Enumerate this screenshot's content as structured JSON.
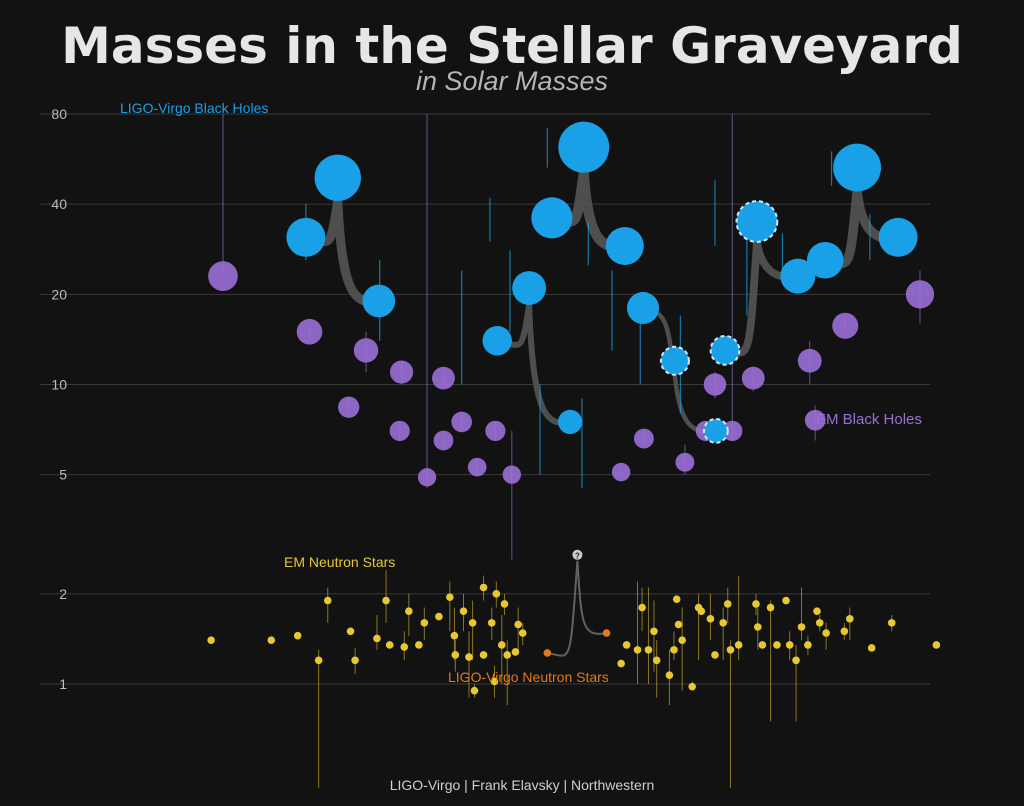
{
  "chart_data": {
    "type": "scatter",
    "title": "Masses in the Stellar Graveyard",
    "subtitle": "in Solar Masses",
    "credit": "LIGO-Virgo | Frank Elavsky | Northwestern",
    "y_scale": "log",
    "ylim": [
      0.45,
      85
    ],
    "y_ticks": [
      1,
      2,
      5,
      10,
      20,
      40,
      80
    ],
    "colors": {
      "ligo_bh": "#1aa0e6",
      "em_bh": "#9b6fd6",
      "em_ns": "#e8c832",
      "ligo_ns": "#e07a1c",
      "merger_arc": "#555555",
      "grid": "#3a3a3a"
    },
    "labels": {
      "ligo_bh": "LIGO-Virgo Black Holes",
      "em_bh": "EM Black Holes",
      "em_ns": "EM Neutron Stars",
      "ligo_ns": "LIGO-Virgo Neutron Stars"
    },
    "ligo_bh_mergers": [
      {
        "x": 0.19,
        "m1": 31,
        "m2": 19,
        "final": 49
      },
      {
        "x": 0.4,
        "m1": 14,
        "m2": 7.5,
        "final": 21
      },
      {
        "x": 0.46,
        "m1": 36,
        "m2": 29,
        "final": 62
      },
      {
        "x": 0.56,
        "m1": 18,
        "m2": 7,
        "final": 12
      },
      {
        "x": 0.65,
        "m1": 13,
        "m2": 23,
        "final": 35
      },
      {
        "x": 0.76,
        "m1": 26,
        "m2": 31,
        "final": 53
      }
    ],
    "ligo_bh_errors": [
      {
        "x": 0.215,
        "m": 31,
        "lo": 26,
        "hi": 40
      },
      {
        "x": 0.296,
        "m": 19,
        "lo": 14,
        "hi": 26
      },
      {
        "x": 0.253,
        "m": 49,
        "lo": 43,
        "hi": 56
      },
      {
        "x": 0.386,
        "m": 14,
        "lo": 10,
        "hi": 24
      },
      {
        "x": 0.472,
        "m": 7.5,
        "lo": 5,
        "hi": 10
      },
      {
        "x": 0.439,
        "m": 21,
        "lo": 15,
        "hi": 28
      },
      {
        "x": 0.417,
        "m": 36,
        "lo": 30,
        "hi": 42
      },
      {
        "x": 0.525,
        "m": 29,
        "lo": 25,
        "hi": 35
      },
      {
        "x": 0.48,
        "m": 62,
        "lo": 53,
        "hi": 72
      },
      {
        "x": 0.551,
        "m": 18,
        "lo": 13,
        "hi": 24
      },
      {
        "x": 0.518,
        "m": 7,
        "lo": 4.5,
        "hi": 9
      },
      {
        "x": 0.582,
        "m": 12,
        "lo": 10,
        "hi": 18
      },
      {
        "x": 0.626,
        "m": 13,
        "lo": 8,
        "hi": 17
      },
      {
        "x": 0.699,
        "m": 23,
        "lo": 17,
        "hi": 40
      },
      {
        "x": 0.664,
        "m": 35,
        "lo": 29,
        "hi": 48
      },
      {
        "x": 0.738,
        "m": 26,
        "lo": 22,
        "hi": 32
      },
      {
        "x": 0.834,
        "m": 31,
        "lo": 26,
        "hi": 37
      },
      {
        "x": 0.792,
        "m": 53,
        "lo": 46,
        "hi": 60
      }
    ],
    "ligo_bh_dashed": [
      0.664,
      0.699,
      0.626
    ],
    "em_bh": [
      {
        "x": 0.124,
        "m": 23,
        "lo": 23,
        "hi": 80
      },
      {
        "x": 0.219,
        "m": 15,
        "lo": 14,
        "hi": 16
      },
      {
        "x": 0.262,
        "m": 8.4,
        "lo": 8,
        "hi": 9
      },
      {
        "x": 0.281,
        "m": 13,
        "lo": 11,
        "hi": 15
      },
      {
        "x": 0.32,
        "m": 11,
        "lo": 10,
        "hi": 12
      },
      {
        "x": 0.318,
        "m": 7,
        "lo": 6.5,
        "hi": 7.5
      },
      {
        "x": 0.348,
        "m": 4.9,
        "lo": 4.5,
        "hi": 80
      },
      {
        "x": 0.366,
        "m": 10.5,
        "lo": 10,
        "hi": 11
      },
      {
        "x": 0.366,
        "m": 6.5,
        "lo": 6.2,
        "hi": 6.8
      },
      {
        "x": 0.386,
        "m": 7.5,
        "lo": 7,
        "hi": 8
      },
      {
        "x": 0.403,
        "m": 5.3,
        "lo": 5,
        "hi": 5.6
      },
      {
        "x": 0.423,
        "m": 7,
        "lo": 6.5,
        "hi": 7.5
      },
      {
        "x": 0.441,
        "m": 5,
        "lo": 2.6,
        "hi": 7
      },
      {
        "x": 0.561,
        "m": 5.1,
        "lo": 4.9,
        "hi": 5.3
      },
      {
        "x": 0.586,
        "m": 6.6,
        "lo": 6.2,
        "hi": 7
      },
      {
        "x": 0.631,
        "m": 5.5,
        "lo": 5,
        "hi": 6.3
      },
      {
        "x": 0.654,
        "m": 7,
        "lo": 6.5,
        "hi": 7.5
      },
      {
        "x": 0.664,
        "m": 10,
        "lo": 9,
        "hi": 11
      },
      {
        "x": 0.683,
        "m": 7,
        "lo": 6.5,
        "hi": 80
      },
      {
        "x": 0.706,
        "m": 10.5,
        "lo": 9.5,
        "hi": 11.5
      },
      {
        "x": 0.768,
        "m": 12,
        "lo": 10,
        "hi": 14
      },
      {
        "x": 0.774,
        "m": 7.6,
        "lo": 6.5,
        "hi": 8.5
      },
      {
        "x": 0.807,
        "m": 15.7,
        "lo": 15,
        "hi": 16.5
      },
      {
        "x": 0.889,
        "m": 20,
        "lo": 16,
        "hi": 24
      }
    ],
    "em_ns": [
      {
        "x": 0.111,
        "m": 1.4
      },
      {
        "x": 0.177,
        "m": 1.4
      },
      {
        "x": 0.206,
        "m": 1.45
      },
      {
        "x": 0.229,
        "m": 1.2,
        "lo": 0.45,
        "hi": 1.3
      },
      {
        "x": 0.239,
        "m": 1.9,
        "lo": 1.6,
        "hi": 2.1
      },
      {
        "x": 0.264,
        "m": 1.5
      },
      {
        "x": 0.269,
        "m": 1.2,
        "lo": 1.08,
        "hi": 1.32
      },
      {
        "x": 0.293,
        "m": 1.42,
        "lo": 1.3,
        "hi": 1.7
      },
      {
        "x": 0.303,
        "m": 1.9,
        "lo": 1.6,
        "hi": 2.4
      },
      {
        "x": 0.307,
        "m": 1.35
      },
      {
        "x": 0.323,
        "m": 1.33,
        "lo": 1.2,
        "hi": 1.5
      },
      {
        "x": 0.328,
        "m": 1.75,
        "lo": 1.45,
        "hi": 2
      },
      {
        "x": 0.339,
        "m": 1.35
      },
      {
        "x": 0.345,
        "m": 1.6,
        "lo": 1.4,
        "hi": 1.8
      },
      {
        "x": 0.361,
        "m": 1.68
      },
      {
        "x": 0.373,
        "m": 1.95,
        "lo": 1.5,
        "hi": 2.2
      },
      {
        "x": 0.378,
        "m": 1.45,
        "lo": 1.2,
        "hi": 1.8
      },
      {
        "x": 0.379,
        "m": 1.25,
        "lo": 1.1,
        "hi": 1.4
      },
      {
        "x": 0.388,
        "m": 1.75,
        "lo": 1.5,
        "hi": 2
      },
      {
        "x": 0.394,
        "m": 1.23,
        "lo": 0.9,
        "hi": 1.5
      },
      {
        "x": 0.398,
        "m": 1.6,
        "lo": 1.2,
        "hi": 1.9
      },
      {
        "x": 0.4,
        "m": 0.95,
        "lo": 0.9,
        "hi": 1.0
      },
      {
        "x": 0.41,
        "m": 2.1,
        "lo": 1.9,
        "hi": 2.3
      },
      {
        "x": 0.41,
        "m": 1.25
      },
      {
        "x": 0.419,
        "m": 1.6,
        "lo": 1.4,
        "hi": 1.8
      },
      {
        "x": 0.424,
        "m": 2.0,
        "lo": 1.8,
        "hi": 2.2
      },
      {
        "x": 0.422,
        "m": 1.02,
        "lo": 0.9,
        "hi": 1.15
      },
      {
        "x": 0.43,
        "m": 1.35,
        "lo": 1.0,
        "hi": 1.7
      },
      {
        "x": 0.433,
        "m": 1.85,
        "lo": 1.7,
        "hi": 2
      },
      {
        "x": 0.436,
        "m": 1.25,
        "lo": 0.85,
        "hi": 1.4
      },
      {
        "x": 0.445,
        "m": 1.28
      },
      {
        "x": 0.448,
        "m": 1.58,
        "lo": 1.3,
        "hi": 1.8
      },
      {
        "x": 0.453,
        "m": 1.48,
        "lo": 1.35,
        "hi": 1.6
      },
      {
        "x": 0.561,
        "m": 1.17
      },
      {
        "x": 0.567,
        "m": 1.35
      },
      {
        "x": 0.579,
        "m": 1.3,
        "lo": 1.0,
        "hi": 2.2
      },
      {
        "x": 0.584,
        "m": 1.8,
        "lo": 1.5,
        "hi": 2.1
      },
      {
        "x": 0.591,
        "m": 1.3,
        "lo": 1.0,
        "hi": 2.1
      },
      {
        "x": 0.597,
        "m": 1.5,
        "lo": 1.1,
        "hi": 1.9
      },
      {
        "x": 0.6,
        "m": 1.2,
        "lo": 0.9,
        "hi": 1.4
      },
      {
        "x": 0.614,
        "m": 1.07,
        "lo": 0.85,
        "hi": 1.3
      },
      {
        "x": 0.619,
        "m": 1.3,
        "lo": 1.2,
        "hi": 1.5
      },
      {
        "x": 0.622,
        "m": 1.92
      },
      {
        "x": 0.624,
        "m": 1.58
      },
      {
        "x": 0.628,
        "m": 1.4,
        "lo": 0.95,
        "hi": 1.8
      },
      {
        "x": 0.639,
        "m": 0.98,
        "lo": 0.95,
        "hi": 1.02
      },
      {
        "x": 0.646,
        "m": 1.8,
        "lo": 1.2,
        "hi": 2.0
      },
      {
        "x": 0.649,
        "m": 1.75
      },
      {
        "x": 0.659,
        "m": 1.65,
        "lo": 1.4,
        "hi": 2
      },
      {
        "x": 0.664,
        "m": 1.25
      },
      {
        "x": 0.673,
        "m": 1.6,
        "lo": 1.2,
        "hi": 1.8
      },
      {
        "x": 0.678,
        "m": 1.85,
        "lo": 1.6,
        "hi": 2.1
      },
      {
        "x": 0.681,
        "m": 1.3,
        "lo": 0.45,
        "hi": 1.4
      },
      {
        "x": 0.69,
        "m": 1.35,
        "lo": 1.2,
        "hi": 2.3
      },
      {
        "x": 0.709,
        "m": 1.85,
        "lo": 1.7,
        "hi": 2
      },
      {
        "x": 0.711,
        "m": 1.55,
        "lo": 1.3,
        "hi": 1.8
      },
      {
        "x": 0.716,
        "m": 1.35
      },
      {
        "x": 0.725,
        "m": 1.8,
        "lo": 0.75,
        "hi": 1.9
      },
      {
        "x": 0.732,
        "m": 1.35
      },
      {
        "x": 0.742,
        "m": 1.9
      },
      {
        "x": 0.746,
        "m": 1.35,
        "lo": 1.2,
        "hi": 1.5
      },
      {
        "x": 0.753,
        "m": 1.2,
        "lo": 0.75,
        "hi": 1.35
      },
      {
        "x": 0.759,
        "m": 1.55,
        "lo": 1.4,
        "hi": 2.1
      },
      {
        "x": 0.766,
        "m": 1.35,
        "lo": 1.25,
        "hi": 1.45
      },
      {
        "x": 0.776,
        "m": 1.75
      },
      {
        "x": 0.779,
        "m": 1.6,
        "lo": 1.5,
        "hi": 1.7
      },
      {
        "x": 0.786,
        "m": 1.48,
        "lo": 1.3,
        "hi": 1.6
      },
      {
        "x": 0.806,
        "m": 1.5,
        "lo": 1.4,
        "hi": 1.6
      },
      {
        "x": 0.812,
        "m": 1.65,
        "lo": 1.4,
        "hi": 1.8
      },
      {
        "x": 0.836,
        "m": 1.32
      },
      {
        "x": 0.858,
        "m": 1.6,
        "lo": 1.5,
        "hi": 1.7
      },
      {
        "x": 0.907,
        "m": 1.35
      }
    ],
    "ligo_ns_merger": {
      "x": 0.5,
      "m1": 1.27,
      "m2": 1.48,
      "final": 2.7,
      "final_label": "?"
    }
  }
}
